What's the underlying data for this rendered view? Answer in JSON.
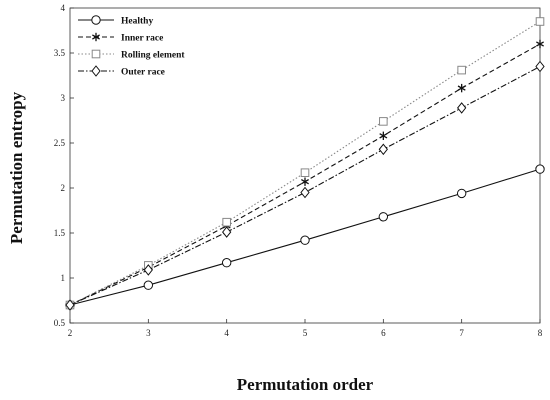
{
  "chart_data": {
    "type": "line",
    "title": "",
    "xlabel": "Permutation order",
    "ylabel": "Permutation entropy",
    "x": [
      2,
      3,
      4,
      5,
      6,
      7,
      8
    ],
    "xlim": [
      2,
      8
    ],
    "ylim": [
      0.5,
      4
    ],
    "xticks": [
      "2",
      "3",
      "4",
      "5",
      "6",
      "7",
      "8"
    ],
    "yticks": [
      "0.5",
      "1",
      "1.5",
      "2",
      "2.5",
      "3",
      "3.5",
      "4"
    ],
    "grid": false,
    "legend_position": "top-left",
    "series": [
      {
        "name": "Healthy",
        "values": [
          0.7,
          0.92,
          1.17,
          1.42,
          1.68,
          1.94,
          2.21
        ],
        "marker": "circle",
        "line": "solid",
        "color": "#111111"
      },
      {
        "name": "Inner race",
        "values": [
          0.7,
          1.12,
          1.58,
          2.07,
          2.58,
          3.11,
          3.6
        ],
        "marker": "asterisk",
        "line": "dashed",
        "color": "#111111"
      },
      {
        "name": "Rolling element",
        "values": [
          0.7,
          1.14,
          1.62,
          2.17,
          2.74,
          3.31,
          3.85
        ],
        "marker": "square",
        "line": "dotted",
        "color": "#888888"
      },
      {
        "name": "Outer race",
        "values": [
          0.7,
          1.09,
          1.51,
          1.95,
          2.43,
          2.89,
          3.35
        ],
        "marker": "diamond",
        "line": "dashdot",
        "color": "#111111"
      }
    ]
  }
}
